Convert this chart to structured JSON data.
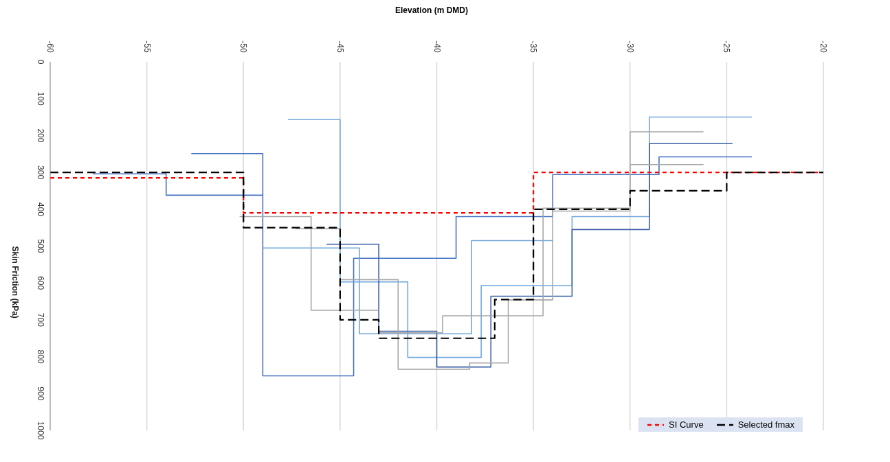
{
  "chart_data": {
    "type": "step",
    "xlabel": "Elevation (m DMD)",
    "ylabel": "Skin Friction (kPa)",
    "xlim": [
      -60,
      -20
    ],
    "xticks": [
      -60,
      -55,
      -50,
      -45,
      -40,
      -35,
      -30,
      -25,
      -20
    ],
    "ylim": [
      1000,
      0
    ],
    "yticks": [
      0,
      100,
      200,
      300,
      400,
      500,
      600,
      700,
      800,
      900,
      1000
    ],
    "grid": "x",
    "legend": "bottom right",
    "series": [
      {
        "color": "#4472c4",
        "x": [
          -52.7,
          -49,
          -44.3,
          -39,
          -34,
          -28.5,
          -23.7
        ],
        "values": [
          249,
          852,
          533,
          420,
          306,
          258,
          258
        ]
      },
      {
        "color": "#4472c4",
        "x": [
          -57.8,
          -54,
          -49
        ],
        "values": [
          304,
          362,
          362
        ]
      },
      {
        "color": "#6fa8dc",
        "x": [
          -47.7,
          -45,
          -41.5,
          -37.7,
          -33,
          -29,
          -23.7
        ],
        "values": [
          157,
          597,
          802,
          607,
          420,
          150,
          150
        ]
      },
      {
        "color": "#6fa8dc",
        "x": [
          -49,
          -44,
          -38.2,
          -34
        ],
        "values": [
          505,
          738,
          485,
          485
        ]
      },
      {
        "color": "#3a5ea8",
        "x": [
          -45.7,
          -43,
          -40,
          -37.2,
          -33,
          -29,
          -24.7
        ],
        "values": [
          495,
          731,
          828,
          636,
          455,
          222,
          222
        ]
      },
      {
        "color": "#a6a6a6",
        "x": [
          -50.2,
          -46.5,
          -43
        ],
        "values": [
          420,
          674,
          674
        ]
      },
      {
        "color": "#a6a6a6",
        "x": [
          -47.3,
          -45
        ],
        "values": [
          453,
          453
        ]
      },
      {
        "color": "#a6a6a6",
        "x": [
          -45,
          -42,
          -38.3,
          -36.3,
          -34,
          -30,
          -26.2
        ],
        "values": [
          591,
          834,
          817,
          646,
          405,
          190,
          190
        ]
      },
      {
        "color": "#a6a6a6",
        "x": [
          -43,
          -39.7,
          -34.5,
          -30,
          -26.2
        ],
        "values": [
          735,
          689,
          397,
          279,
          279
        ]
      },
      {
        "name": "SI Curve",
        "color": "#ff0000",
        "line_style": "dotted",
        "x": [
          -60,
          -50,
          -35,
          -20
        ],
        "values": [
          315,
          410,
          300,
          300
        ]
      },
      {
        "name": "Selected fmax",
        "color": "#000000",
        "line_style": "dashed",
        "x": [
          -60,
          -50,
          -45,
          -43,
          -37,
          -35,
          -30,
          -25,
          -20
        ],
        "values": [
          300,
          450,
          700,
          750,
          645,
          400,
          350,
          300,
          300
        ]
      }
    ]
  }
}
